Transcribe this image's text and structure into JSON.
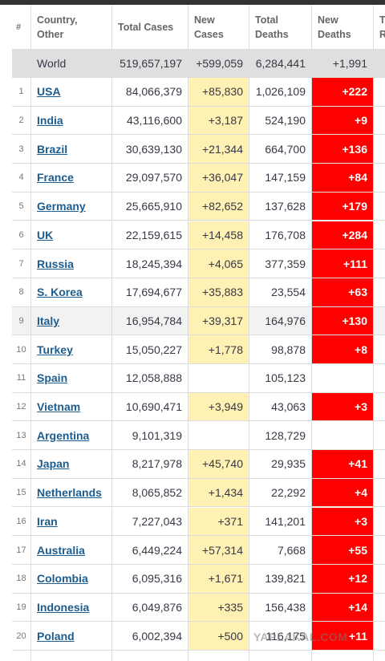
{
  "header": [
    "#",
    "Country, Other",
    "Total Cases",
    "New Cases",
    "Total Deaths",
    "New Deaths",
    "Total Recovered"
  ],
  "world": [
    "World",
    "519,657,197",
    "+599,059",
    "6,284,441",
    "+1,991"
  ],
  "rows": [
    [
      "1",
      "USA",
      "84,066,379",
      "+85,830",
      "1,026,109",
      "+222"
    ],
    [
      "2",
      "India",
      "43,116,600",
      "+3,187",
      "524,190",
      "+9"
    ],
    [
      "3",
      "Brazil",
      "30,639,130",
      "+21,344",
      "664,700",
      "+136"
    ],
    [
      "4",
      "France",
      "29,097,570",
      "+36,047",
      "147,159",
      "+84"
    ],
    [
      "5",
      "Germany",
      "25,665,910",
      "+82,652",
      "137,628",
      "+179"
    ],
    [
      "6",
      "UK",
      "22,159,615",
      "+14,458",
      "176,708",
      "+284"
    ],
    [
      "7",
      "Russia",
      "18,245,394",
      "+4,065",
      "377,359",
      "+111"
    ],
    [
      "8",
      "S. Korea",
      "17,694,677",
      "+35,883",
      "23,554",
      "+63"
    ],
    [
      "9",
      "Italy",
      "16,954,784",
      "+39,317",
      "164,976",
      "+130"
    ],
    [
      "10",
      "Turkey",
      "15,050,227",
      "+1,778",
      "98,878",
      "+8"
    ],
    [
      "11",
      "Spain",
      "12,058,888",
      null,
      "105,123",
      null
    ],
    [
      "12",
      "Vietnam",
      "10,690,471",
      "+3,949",
      "43,063",
      "+3"
    ],
    [
      "13",
      "Argentina",
      "9,101,319",
      null,
      "128,729",
      null
    ],
    [
      "14",
      "Japan",
      "8,217,978",
      "+45,740",
      "29,935",
      "+41"
    ],
    [
      "15",
      "Netherlands",
      "8,065,852",
      "+1,434",
      "22,292",
      "+4"
    ],
    [
      "16",
      "Iran",
      "7,227,043",
      "+371",
      "141,201",
      "+3"
    ],
    [
      "17",
      "Australia",
      "6,449,224",
      "+57,314",
      "7,668",
      "+55"
    ],
    [
      "18",
      "Colombia",
      "6,095,316",
      "+1,671",
      "139,821",
      "+12"
    ],
    [
      "19",
      "Indonesia",
      "6,049,876",
      "+335",
      "156,438",
      "+14"
    ],
    [
      "20",
      "Poland",
      "6,002,394",
      "+500",
      "116,175",
      "+11"
    ]
  ],
  "watermark": "YAPLAKAL.COM"
}
